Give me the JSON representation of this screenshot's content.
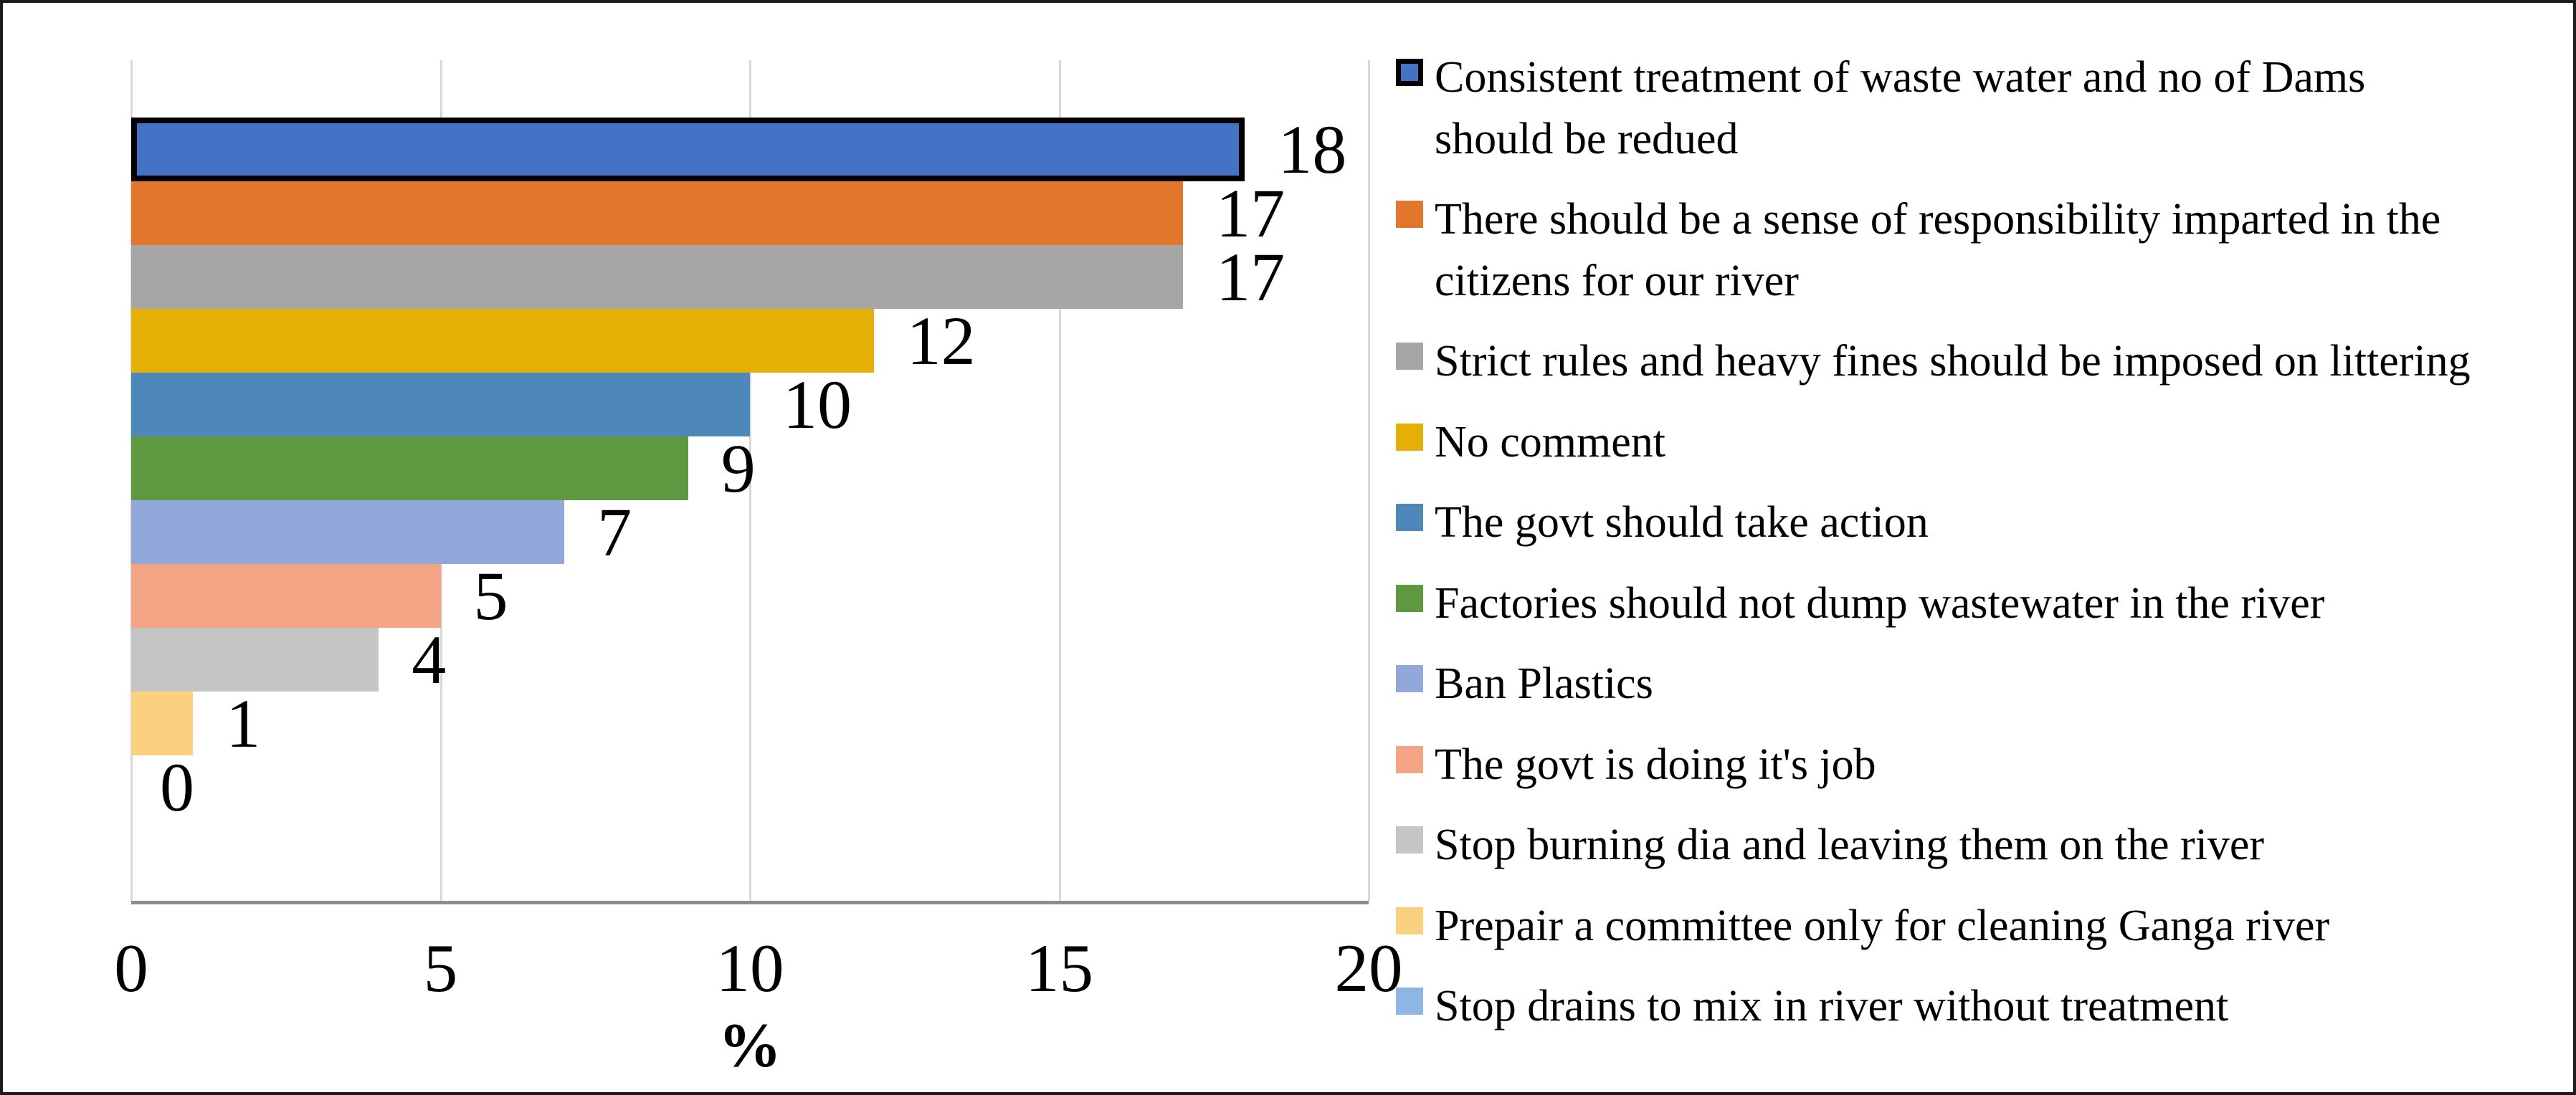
{
  "figure": {
    "background": "#ffffff",
    "border_color": "#1c1c1c",
    "gridline_color": "#d8d8d8",
    "axis_line_color": "#8c8c8c",
    "text_color": "#000000"
  },
  "chart_data": {
    "type": "bar",
    "orientation": "horizontal",
    "title": "",
    "xlabel": "%",
    "ylabel": "",
    "xlim": [
      0,
      20
    ],
    "x_ticks": [
      "0",
      "5",
      "10",
      "15",
      "20"
    ],
    "grid": true,
    "legend_position": "right",
    "categories": [
      "Consistent treatment of waste water and no of Dams should be redued",
      "There should be a sense of responsibility imparted in the citizens for our river",
      "Strict rules and heavy fines should be imposed on littering",
      "No comment",
      "The govt should take action",
      "Factories should not dump wastewater in the river",
      "Ban Plastics",
      "The govt is doing it's job",
      "Stop burning dia and leaving them on the river",
      "Prepair a committee only for cleaning Ganga river",
      "Stop drains to mix in river without treatment"
    ],
    "values": [
      18,
      17,
      17,
      12,
      10,
      9,
      7,
      5,
      4,
      1,
      0
    ],
    "series": [
      {
        "name": "%",
        "values": [
          18,
          17,
          17,
          12,
          10,
          9,
          7,
          5,
          4,
          1,
          0
        ]
      }
    ],
    "items": [
      {
        "label": "Consistent treatment of waste water and no of Dams should be redued",
        "label_lines": [
          "Consistent treatment of waste water and no of Dams",
          "should be redued"
        ],
        "value": 18,
        "color": "#4472C4",
        "bar_border": "#000000",
        "swatch_border": "#000000"
      },
      {
        "label": "There should be a sense of responsibility imparted in the citizens for our river",
        "label_lines": [
          "There should be a sense of responsibility imparted in the",
          "citizens for our river"
        ],
        "value": 17,
        "color": "#E2762C"
      },
      {
        "label": "Strict rules and heavy fines should be imposed on littering",
        "value": 17,
        "color": "#A6A6A6",
        "pattern": true
      },
      {
        "label": "No comment",
        "value": 12,
        "color": "#E5AF06"
      },
      {
        "label": "The govt should take action",
        "value": 10,
        "color": "#4E87B9"
      },
      {
        "label": "Factories should not dump wastewater in the river",
        "value": 9,
        "color": "#5E9941"
      },
      {
        "label": "Ban Plastics",
        "value": 7,
        "color": "#92A7DA"
      },
      {
        "label": "The govt is doing it's job",
        "value": 5,
        "color": "#F2A484"
      },
      {
        "label": "Stop burning dia and leaving them on the river",
        "value": 4,
        "color": "#C5C5C5"
      },
      {
        "label": "Prepair a committee only for cleaning Ganga river",
        "value": 1,
        "color": "#FBD07E"
      },
      {
        "label": "Stop drains to mix in river without treatment",
        "value": 0,
        "color": "#8FB5E3"
      }
    ]
  }
}
